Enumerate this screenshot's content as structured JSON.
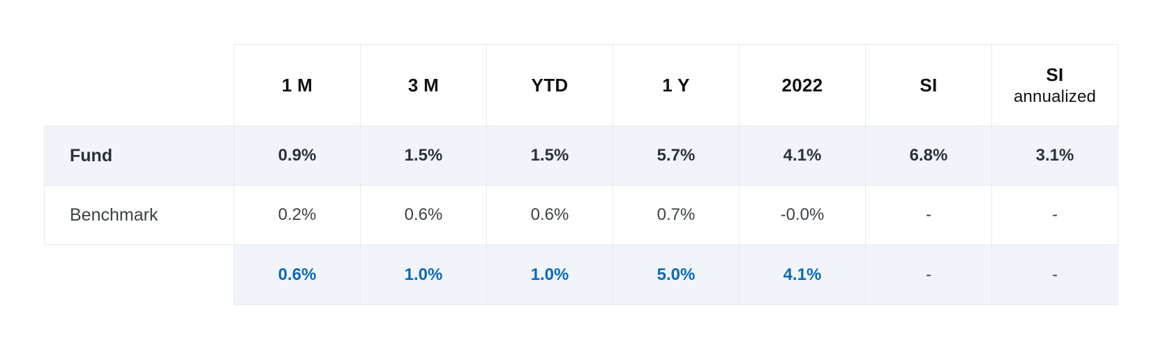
{
  "table": {
    "columns": [
      {
        "label": "1 M",
        "sub": ""
      },
      {
        "label": "3 M",
        "sub": ""
      },
      {
        "label": "YTD",
        "sub": ""
      },
      {
        "label": "1 Y",
        "sub": ""
      },
      {
        "label": "2022",
        "sub": ""
      },
      {
        "label": "SI",
        "sub": ""
      },
      {
        "label": "SI",
        "sub": "annualized"
      }
    ],
    "rows": {
      "fund": {
        "label": "Fund",
        "values": [
          "0.9%",
          "1.5%",
          "1.5%",
          "5.7%",
          "4.1%",
          "6.8%",
          "3.1%"
        ]
      },
      "benchmark": {
        "label": "Benchmark",
        "values": [
          "0.2%",
          "0.6%",
          "0.6%",
          "0.7%",
          "-0.0%",
          "-",
          "-"
        ]
      },
      "difference": {
        "label": "",
        "values": [
          "0.6%",
          "1.0%",
          "1.0%",
          "5.0%",
          "4.1%",
          "-",
          "-"
        ]
      }
    },
    "colors": {
      "accent": "#0a6ab8",
      "row_shade": "#f1f5f9",
      "border": "#e4e9ef"
    }
  }
}
